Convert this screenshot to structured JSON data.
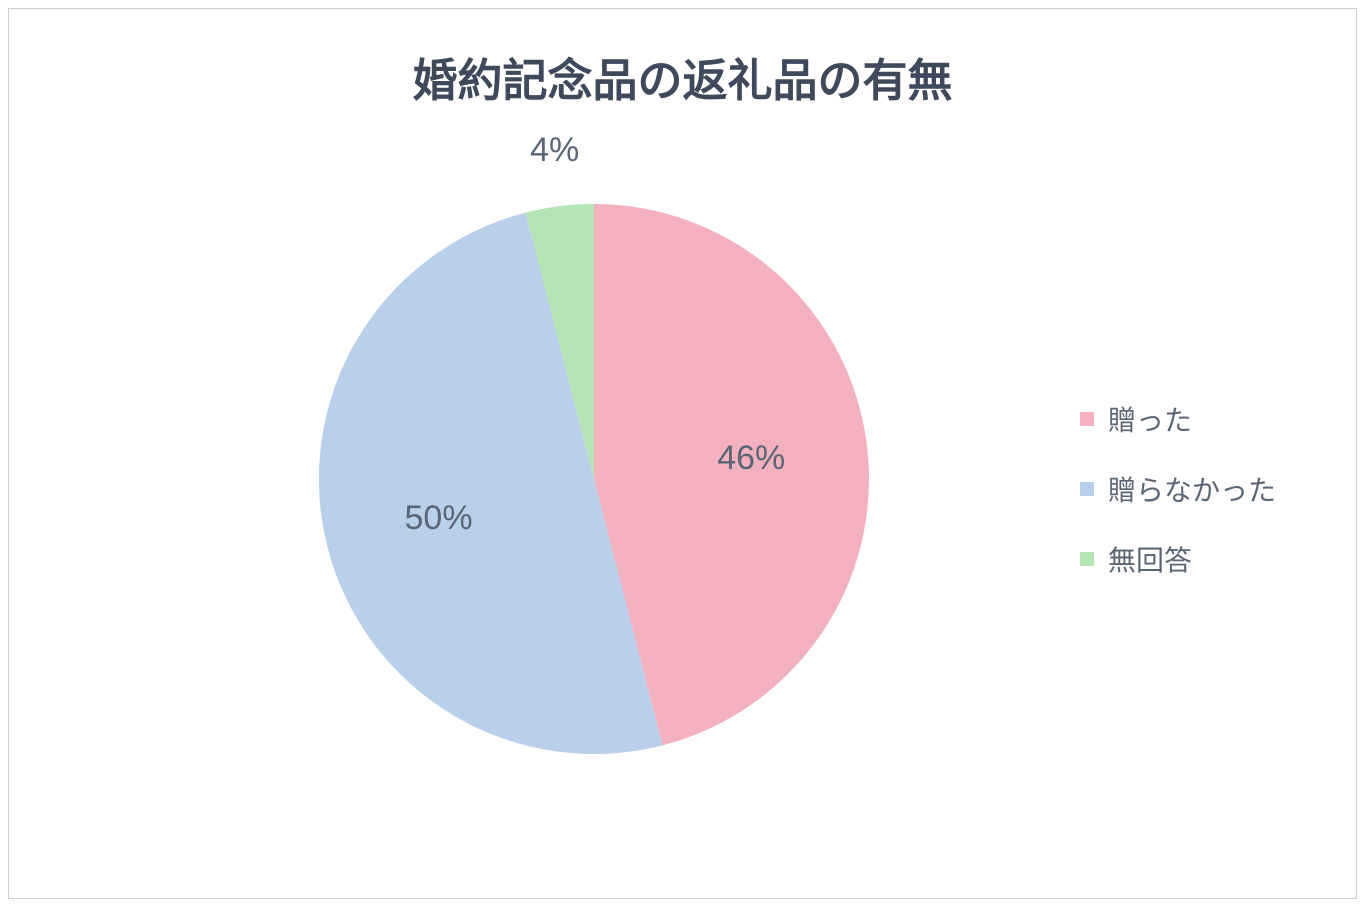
{
  "chart": {
    "type": "pie",
    "title": "婚約記念品の返礼品の有無",
    "title_fontsize": 45,
    "title_color": "#3e4a5b",
    "background_color": "#ffffff",
    "border_color": "#cccccc",
    "radius": 275,
    "slices": [
      {
        "label": "贈った",
        "value": 46,
        "display": "46%",
        "color": "#f3b0bf"
      },
      {
        "label": "贈らなかった",
        "value": 50,
        "display": "50%",
        "color": "#b9cfea"
      },
      {
        "label": "無回答",
        "value": 4,
        "display": "4%",
        "color": "#b3e5b5"
      }
    ],
    "slice_label_fontsize": 34,
    "slice_label_color": "#5a6675",
    "legend": {
      "fontsize": 28,
      "label_color": "#5a6675",
      "swatch_size": 14
    }
  }
}
